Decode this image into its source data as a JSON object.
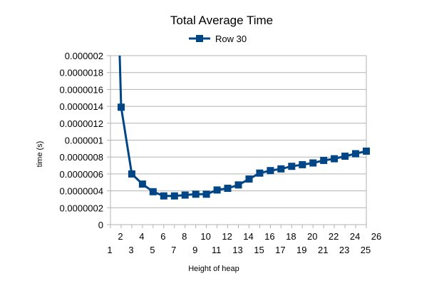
{
  "chart_data": {
    "type": "line",
    "title": "Total Average Time",
    "xlabel": "Height of heap",
    "ylabel": "time (s)",
    "legend_position": "top-center",
    "grid": true,
    "ylim": [
      0,
      2e-06
    ],
    "xlim": [
      2,
      26
    ],
    "y_ticks": [
      "0",
      "0.0000002",
      "0.0000004",
      "0.0000006",
      "0.0000008",
      "0.000001",
      "0.0000012",
      "0.0000014",
      "0.0000016",
      "0.0000018",
      "0.000002"
    ],
    "x_ticks_top": [
      "2",
      "4",
      "6",
      "8",
      "10",
      "12",
      "14",
      "16",
      "18",
      "20",
      "22",
      "24",
      "26"
    ],
    "x_ticks_bottom": [
      "1",
      "3",
      "5",
      "7",
      "9",
      "11",
      "13",
      "15",
      "17",
      "19",
      "21",
      "23",
      "25"
    ],
    "series": [
      {
        "name": "Row 30",
        "color": "#004586",
        "x": [
          3,
          4,
          5,
          6,
          7,
          8,
          9,
          10,
          11,
          12,
          13,
          14,
          15,
          16,
          17,
          18,
          19,
          20,
          21,
          22,
          23,
          24,
          25,
          26
        ],
        "values": [
          1.39e-06,
          6e-07,
          4.8e-07,
          3.9e-07,
          3.4e-07,
          3.4e-07,
          3.5e-07,
          3.6e-07,
          3.6e-07,
          4.1e-07,
          4.3e-07,
          4.7e-07,
          5.4e-07,
          6.1e-07,
          6.4e-07,
          6.6e-07,
          6.9e-07,
          7.1e-07,
          7.3e-07,
          7.6e-07,
          7.8e-07,
          8.1e-07,
          8.4e-07,
          8.7e-07
        ]
      }
    ]
  }
}
